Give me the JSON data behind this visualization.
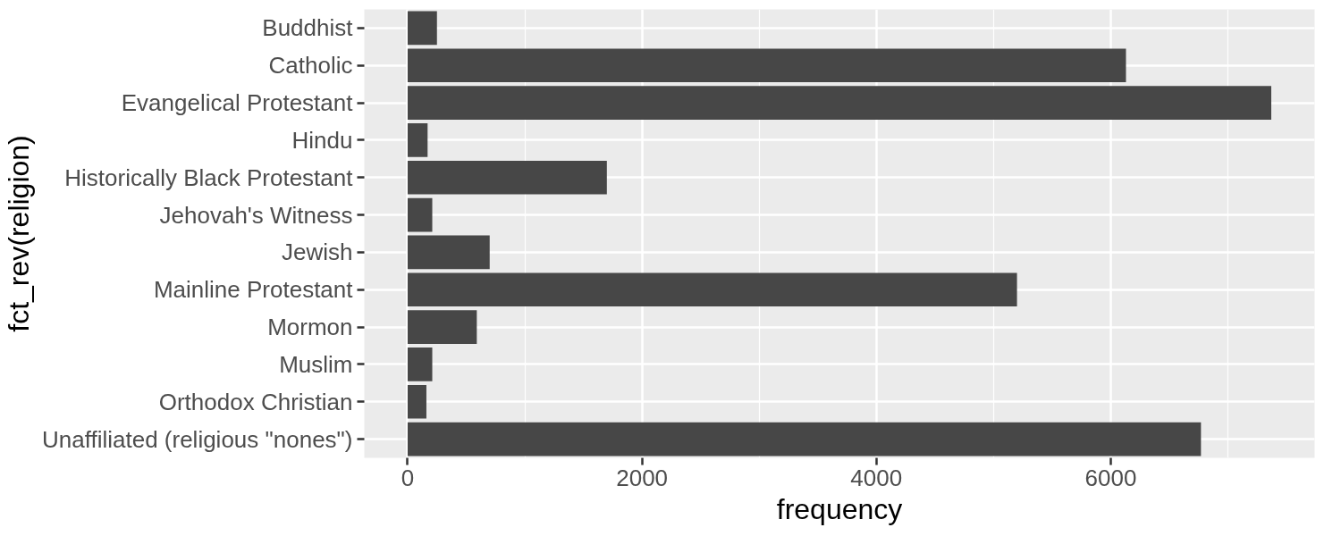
{
  "chart_data": {
    "type": "bar",
    "orientation": "horizontal",
    "xlabel": "frequency",
    "ylabel": "fct_rev(religion)",
    "categories": [
      "Buddhist",
      "Catholic",
      "Evangelical Protestant",
      "Hindu",
      "Historically Black Protestant",
      "Jehovah's Witness",
      "Jewish",
      "Mainline Protestant",
      "Mormon",
      "Muslim",
      "Orthodox Christian",
      "Unaffiliated (religious \"nones\")"
    ],
    "values": [
      250,
      6130,
      7370,
      170,
      1700,
      210,
      700,
      5200,
      590,
      210,
      160,
      6770
    ],
    "color": "#474747",
    "xlim": [
      -370,
      7740
    ],
    "xticks": [
      0,
      2000,
      4000,
      6000
    ],
    "grid": true
  }
}
